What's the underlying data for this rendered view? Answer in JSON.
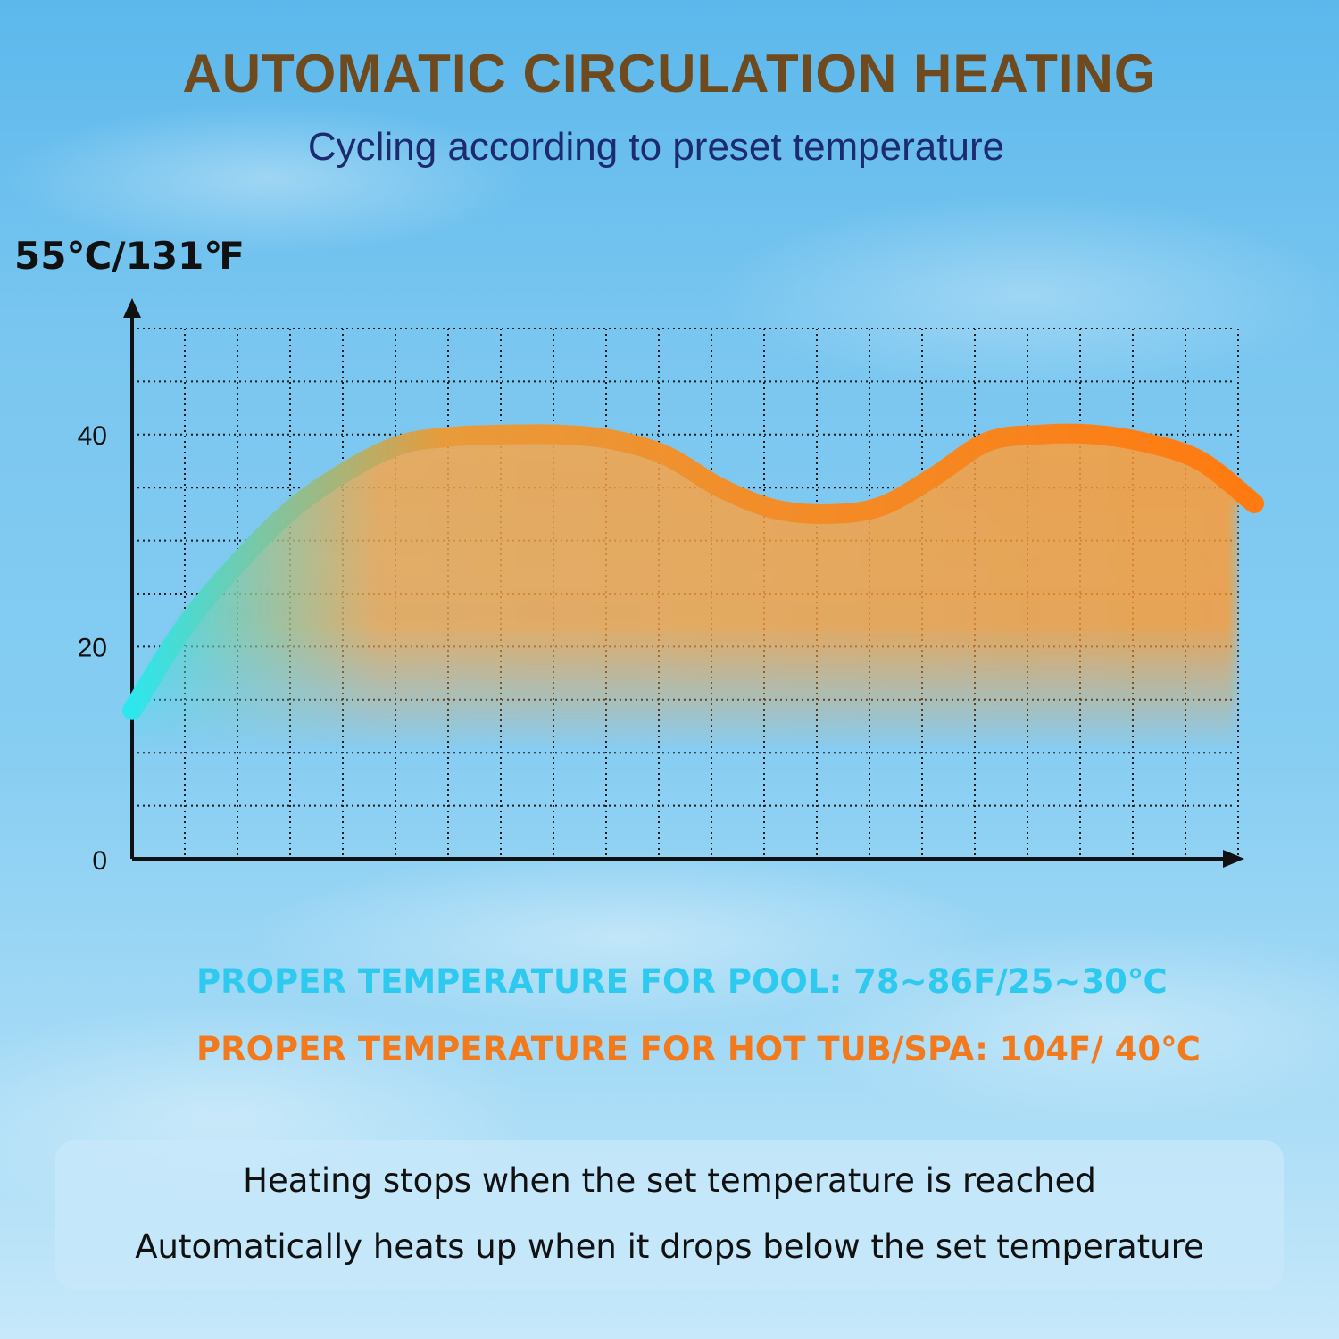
{
  "header": {
    "title": "AUTOMATIC CIRCULATION HEATING",
    "subtitle": "Cycling according to preset temperature"
  },
  "chart_data": {
    "type": "area",
    "title": "AUTOMATIC CIRCULATION HEATING",
    "subtitle": "Cycling according to preset temperature",
    "y_max_label": "55℃/131℉",
    "ylim": [
      0,
      50
    ],
    "yticks": [
      0,
      20,
      40
    ],
    "grid": true,
    "x_labels_shown": false,
    "series": [
      {
        "x": [
          0,
          1,
          2,
          3,
          4,
          5,
          6,
          7,
          8,
          9,
          10,
          11,
          12,
          13,
          14,
          15,
          16,
          17,
          18,
          19,
          20,
          21
        ],
        "y": [
          14,
          22,
          28,
          33,
          36.5,
          39,
          39.8,
          40,
          40,
          39.5,
          38,
          35,
          33,
          32.5,
          33.2,
          36,
          39.3,
          40,
          40,
          39.2,
          37.5,
          33.5
        ]
      }
    ],
    "colors": {
      "start": "#2ee6ee",
      "end": "#ff7a10"
    }
  },
  "notes": {
    "pool": "PROPER TEMPERATURE FOR POOL: 78~86F/25~30℃",
    "spa": "PROPER TEMPERATURE FOR HOT TUB/SPA: 104F/ 40℃",
    "line1": "Heating stops when the set temperature is reached",
    "line2": "Automatically heats up when it drops below the set temperature"
  }
}
